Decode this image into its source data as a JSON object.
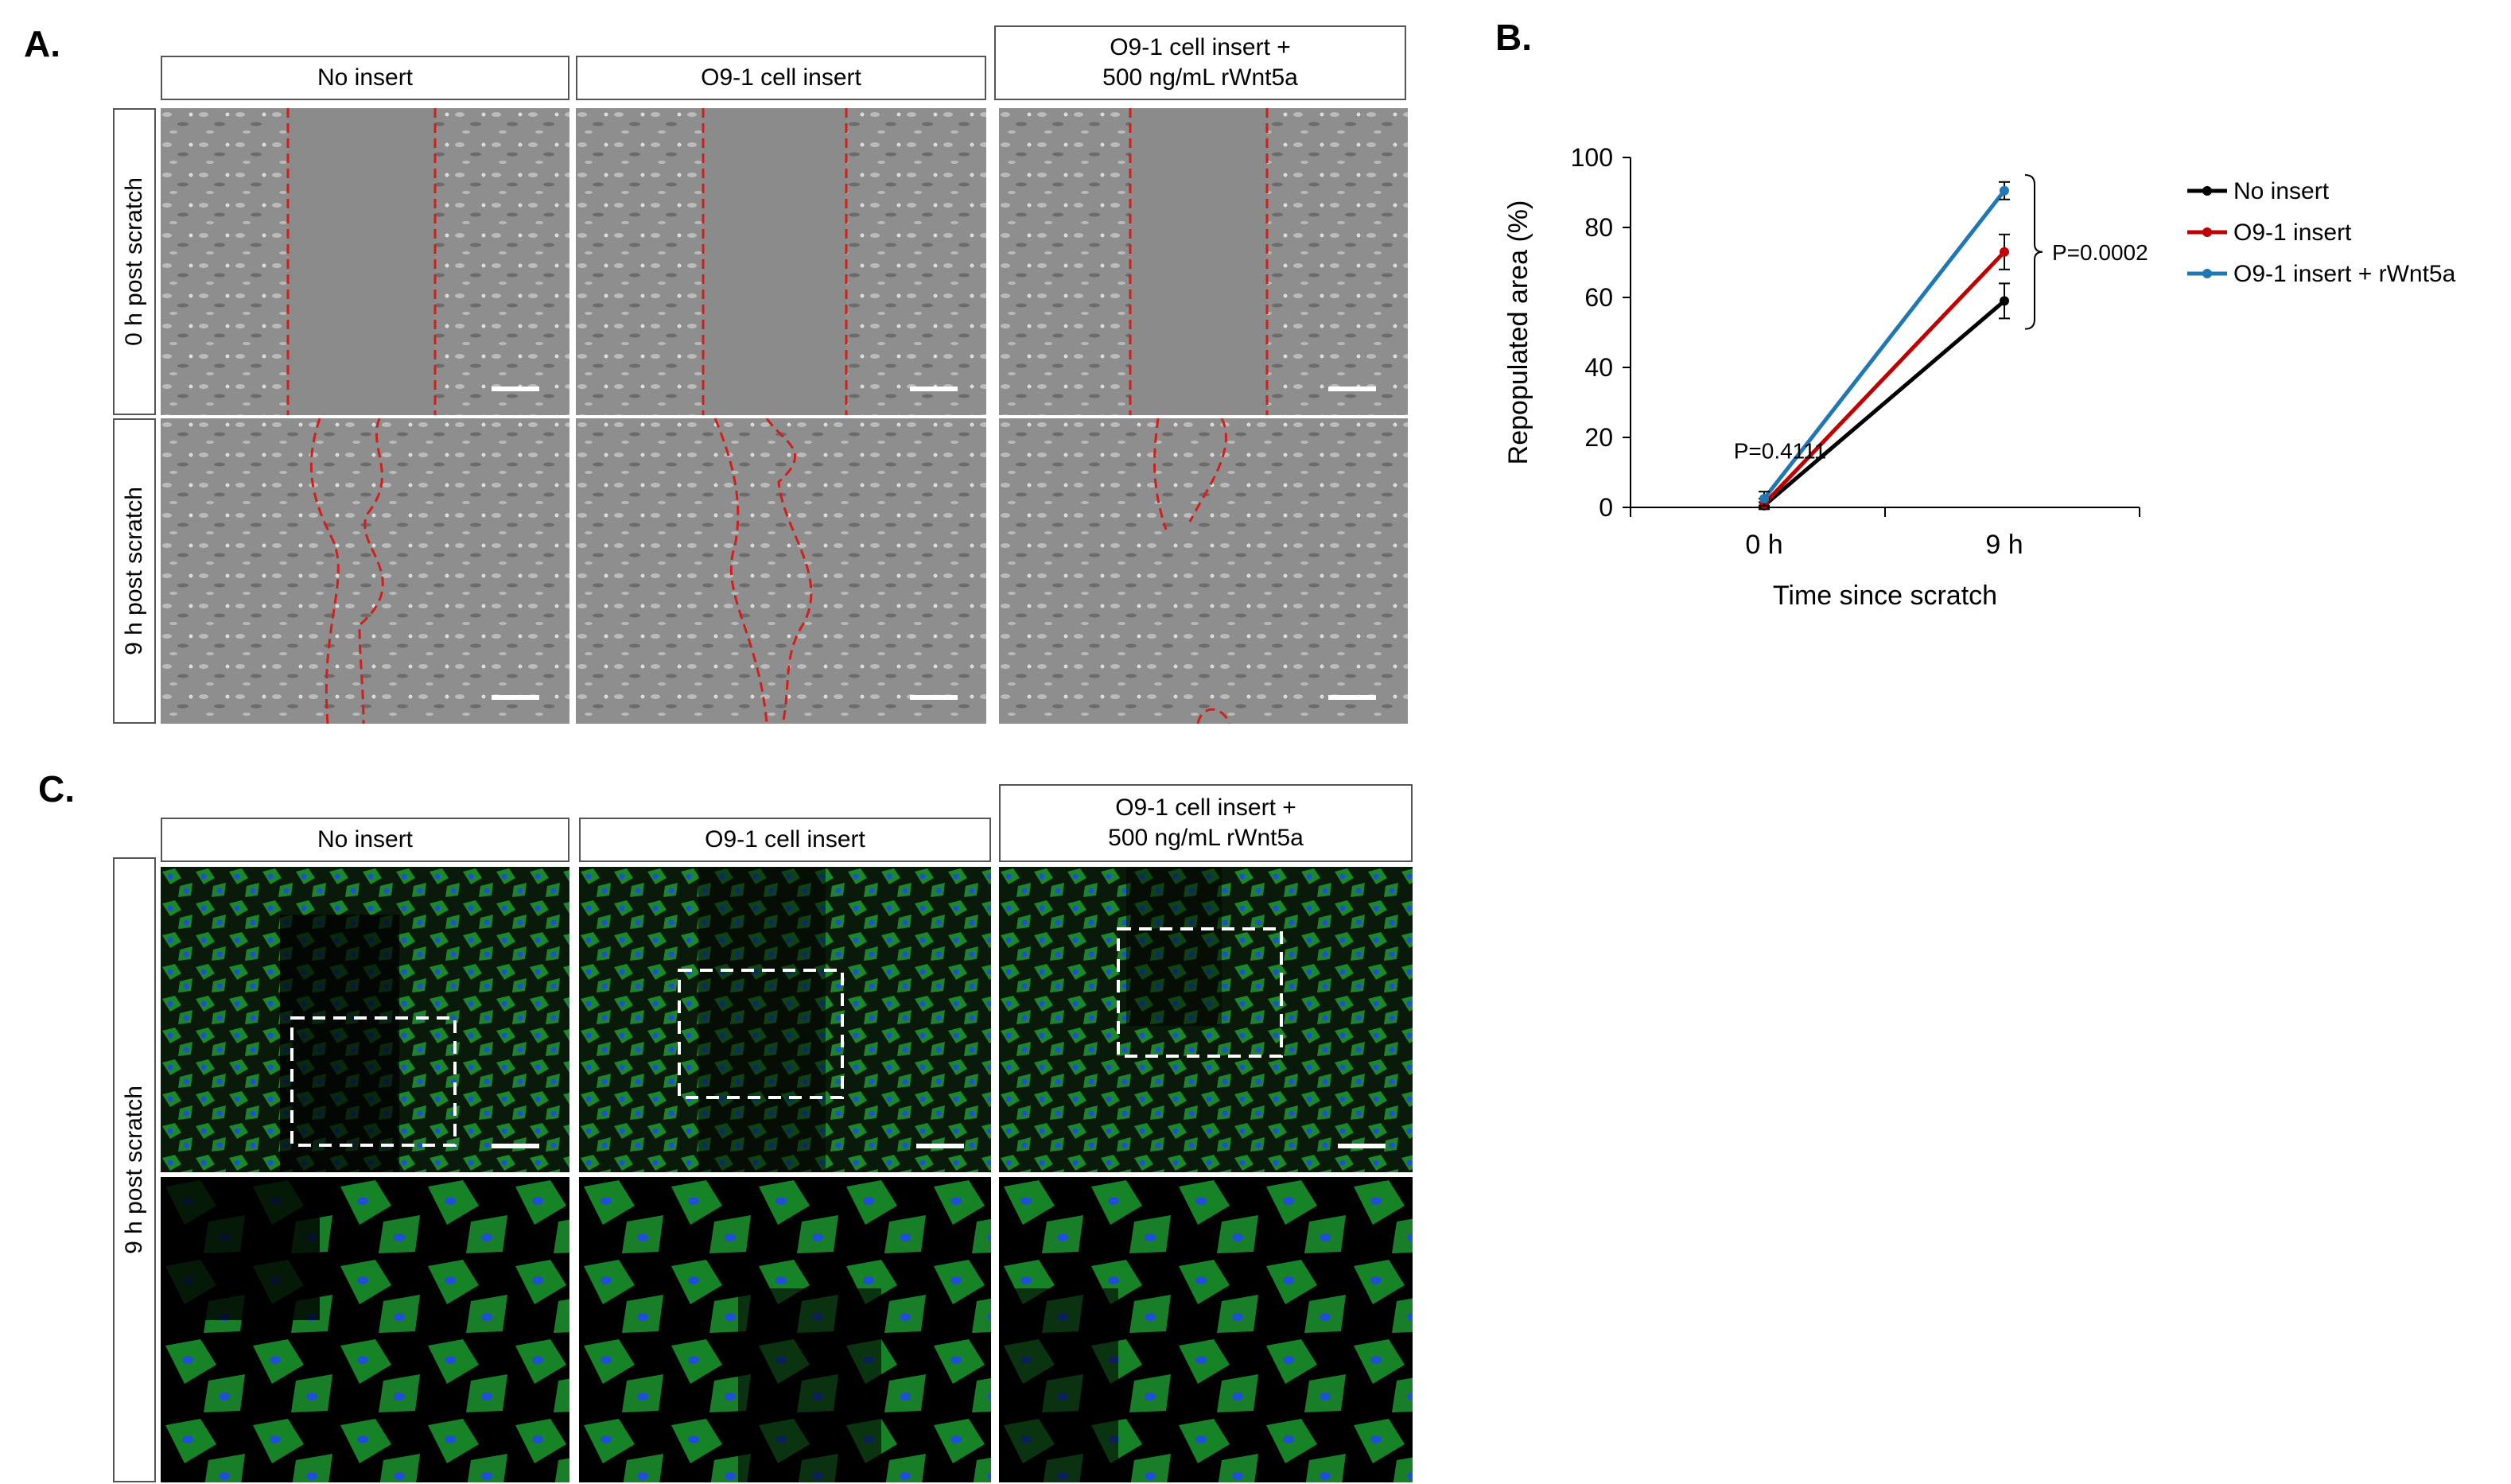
{
  "panels": {
    "a_label": "A.",
    "b_label": "B.",
    "c_label": "C."
  },
  "panel_a": {
    "columns": [
      {
        "label": "No insert"
      },
      {
        "label": "O9-1 cell insert"
      },
      {
        "label": "O9-1 cell insert +\n500 ng/mL rWnt5a"
      }
    ],
    "rows": [
      {
        "label": "0 h post scratch"
      },
      {
        "label": "9 h post scratch"
      }
    ]
  },
  "panel_c": {
    "columns": [
      {
        "label": "No insert"
      },
      {
        "label": "O9-1 cell insert"
      },
      {
        "label": "O9-1 cell insert +\n500 ng/mL rWnt5a"
      }
    ],
    "row_label": "9 h post scratch"
  },
  "colors": {
    "no_insert": "#000000",
    "o91_insert": "#c00000",
    "o91_rwnt5a": "#1f77b4",
    "phase_bg": "#8a8a8a",
    "fluor_green": "#22c23a",
    "fluor_blue": "#1f4fd8",
    "boundary": "#d0201c"
  },
  "chart_data": {
    "type": "line",
    "xlabel": "Time since scratch",
    "ylabel": "Repopulated area (%)",
    "categories": [
      "0 h",
      "9 h"
    ],
    "ylim": [
      0,
      100
    ],
    "yticks": [
      "0",
      "20",
      "40",
      "60",
      "80",
      "100"
    ],
    "series": [
      {
        "name": "No insert",
        "color": "#000000",
        "values": [
          0.5,
          59
        ],
        "errors": [
          1,
          5
        ]
      },
      {
        "name": "O9-1 insert",
        "color": "#c00000",
        "values": [
          1,
          73
        ],
        "errors": [
          1.5,
          5
        ]
      },
      {
        "name": "O9-1 insert + rWnt5a",
        "color": "#1f77b4",
        "values": [
          2.5,
          90.5
        ],
        "errors": [
          2,
          2.5
        ]
      }
    ],
    "annotations": [
      {
        "text": "P=0.4111"
      },
      {
        "text": "P=0.0002"
      }
    ],
    "legend_position": "right"
  }
}
